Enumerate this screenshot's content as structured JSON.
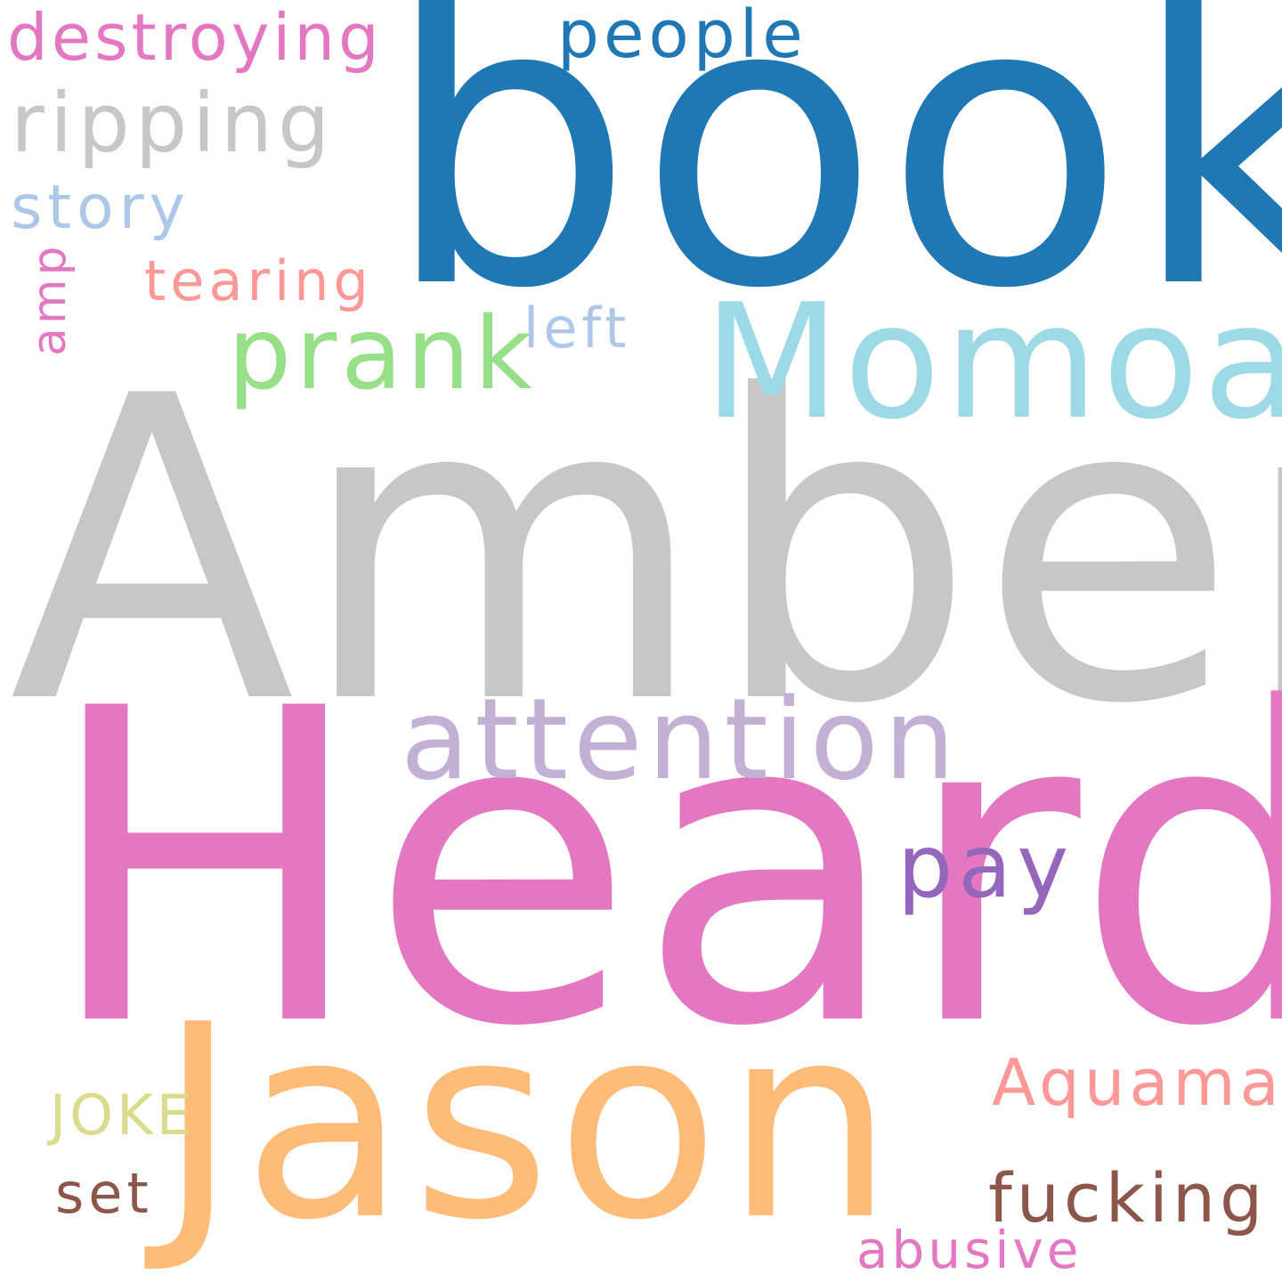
{
  "wordcloud": {
    "background": "#ffffff",
    "words": [
      {
        "text": "Amber",
        "color": "#c7c7c7"
      },
      {
        "text": "Heard",
        "color": "#e377c2"
      },
      {
        "text": "book",
        "color": "#1f77b4"
      },
      {
        "text": "Jason",
        "color": "#ffbb78"
      },
      {
        "text": "Momoa",
        "color": "#9edae5"
      },
      {
        "text": "attention",
        "color": "#c5b0d5"
      },
      {
        "text": "prank",
        "color": "#98df8a"
      },
      {
        "text": "ripping",
        "color": "#c7c7c7"
      },
      {
        "text": "destroying",
        "color": "#e377c2"
      },
      {
        "text": "people",
        "color": "#1f77b4"
      },
      {
        "text": "story",
        "color": "#aec7e8"
      },
      {
        "text": "tearing",
        "color": "#ff9896"
      },
      {
        "text": "left",
        "color": "#aec7e8"
      },
      {
        "text": "amp",
        "color": "#e377c2"
      },
      {
        "text": "pay",
        "color": "#9467bd"
      },
      {
        "text": "Aquaman",
        "color": "#ff9896"
      },
      {
        "text": "JOKE",
        "color": "#dbdb8d"
      },
      {
        "text": "set",
        "color": "#8c564b"
      },
      {
        "text": "fucking",
        "color": "#8c564b"
      },
      {
        "text": "abusive",
        "color": "#e377c2"
      }
    ]
  }
}
